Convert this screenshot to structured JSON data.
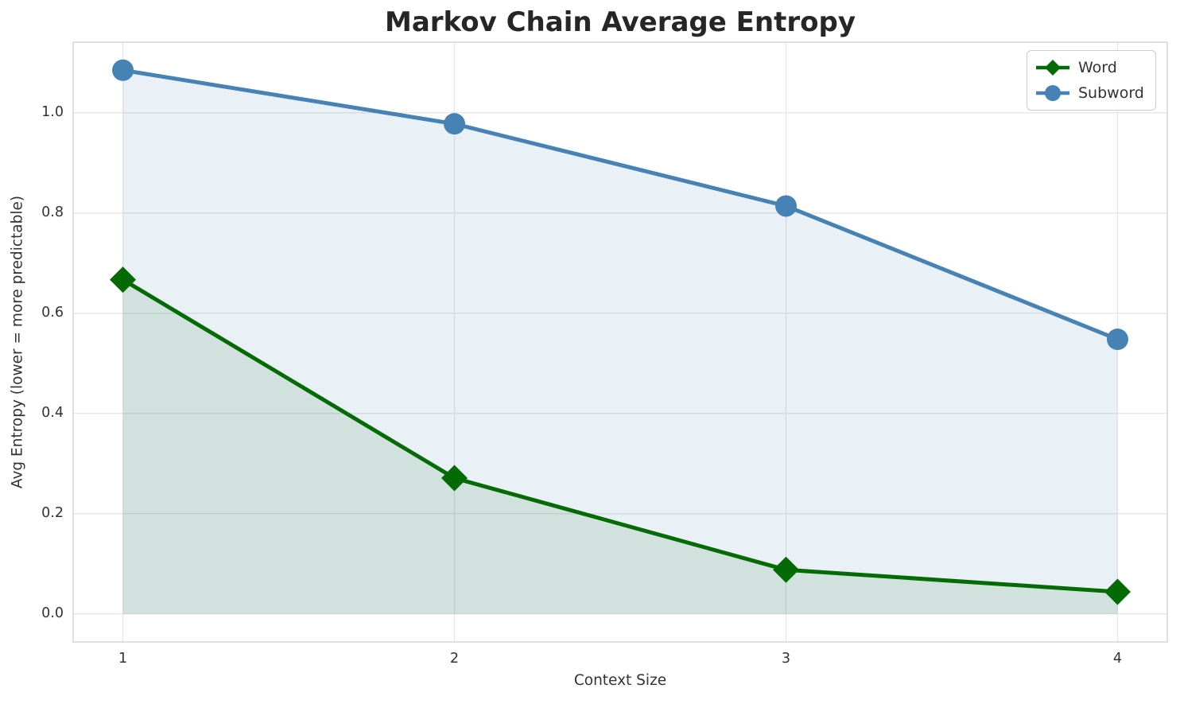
{
  "chart_data": {
    "type": "line",
    "title": "Markov Chain Average Entropy",
    "xlabel": "Context Size",
    "ylabel": "Avg Entropy (lower = more predictable)",
    "x": [
      1,
      2,
      3,
      4
    ],
    "xtick_labels": [
      "1",
      "2",
      "3",
      "4"
    ],
    "ytick_values": [
      0.0,
      0.2,
      0.4,
      0.6,
      0.8,
      1.0
    ],
    "ytick_labels": [
      "0.0",
      "0.2",
      "0.4",
      "0.6",
      "0.8",
      "1.0"
    ],
    "xlim": [
      0.85,
      4.15
    ],
    "ylim": [
      -0.056,
      1.141
    ],
    "grid": true,
    "legend_position": "upper right",
    "series": [
      {
        "name": "Word",
        "marker": "diamond",
        "color": "#046b04",
        "fill_color": "rgba(0,100,0,0.10)",
        "values": [
          0.667,
          0.271,
          0.088,
          0.044
        ]
      },
      {
        "name": "Subword",
        "marker": "circle",
        "color": "#4682b4",
        "fill_color": "rgba(70,130,180,0.12)",
        "values": [
          1.085,
          0.978,
          0.814,
          0.548
        ]
      }
    ]
  },
  "colors": {
    "background": "#ffffff",
    "grid": "#e7e7e7",
    "spine": "#d2d2d2",
    "tick_text": "#333333",
    "title_text": "#262626"
  }
}
